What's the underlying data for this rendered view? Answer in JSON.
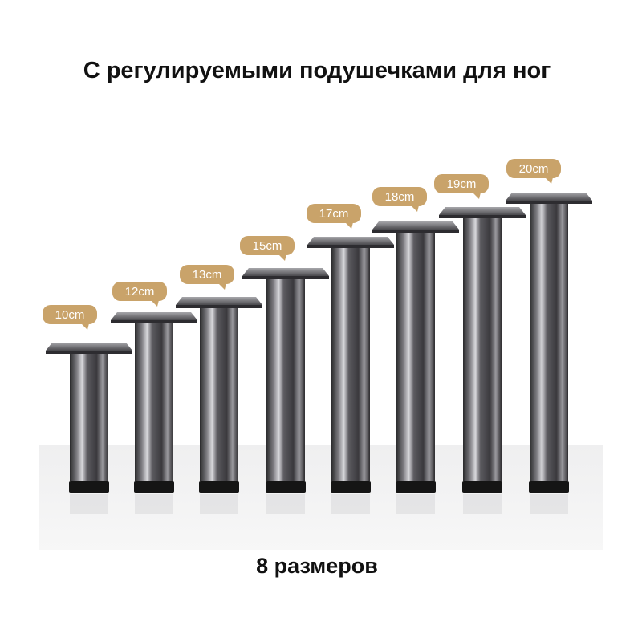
{
  "header": {
    "title": "С регулируемыми подушечками для ног"
  },
  "legs": [
    {
      "label": "10cm"
    },
    {
      "label": "12cm"
    },
    {
      "label": "13cm"
    },
    {
      "label": "15cm"
    },
    {
      "label": "17cm"
    },
    {
      "label": "18cm"
    },
    {
      "label": "19cm"
    },
    {
      "label": "20cm"
    }
  ],
  "footer": {
    "text": "8 размеров"
  }
}
